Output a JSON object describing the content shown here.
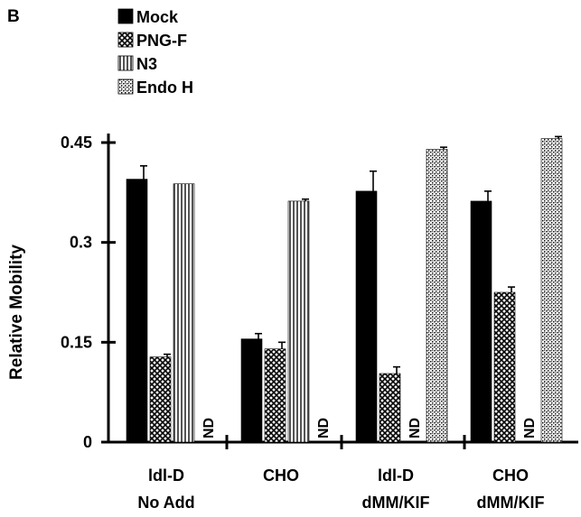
{
  "panel_label": "B",
  "chart_data": {
    "type": "bar",
    "ylabel": "Relative Mobility",
    "ylim": [
      0,
      0.45
    ],
    "yticks": [
      "0",
      "0.15",
      "0.3",
      "0.45"
    ],
    "categories": [
      [
        "ldl-D",
        "No Add"
      ],
      [
        "CHO",
        ""
      ],
      [
        "ldl-D",
        "dMM/KIF"
      ],
      [
        "CHO",
        "dMM/KIF"
      ]
    ],
    "legend_position": "top-left",
    "series": [
      {
        "name": "Mock",
        "pattern": "solid",
        "values": [
          0.395,
          0.155,
          0.377,
          0.362
        ],
        "errors": [
          0.02,
          0.008,
          0.03,
          0.015
        ]
      },
      {
        "name": "PNG-F",
        "pattern": "crosshatch",
        "values": [
          0.128,
          0.14,
          0.103,
          0.225
        ],
        "errors": [
          0.004,
          0.01,
          0.01,
          0.008
        ]
      },
      {
        "name": "N3",
        "pattern": "vertical-lines",
        "values": [
          0.388,
          0.362,
          null,
          null
        ],
        "errors": [
          0.0,
          0.003,
          null,
          null
        ]
      },
      {
        "name": "Endo H",
        "pattern": "stipple",
        "values": [
          null,
          null,
          0.44,
          0.456
        ],
        "errors": [
          null,
          null,
          0.003,
          0.003
        ]
      }
    ],
    "missing_label": "ND"
  }
}
